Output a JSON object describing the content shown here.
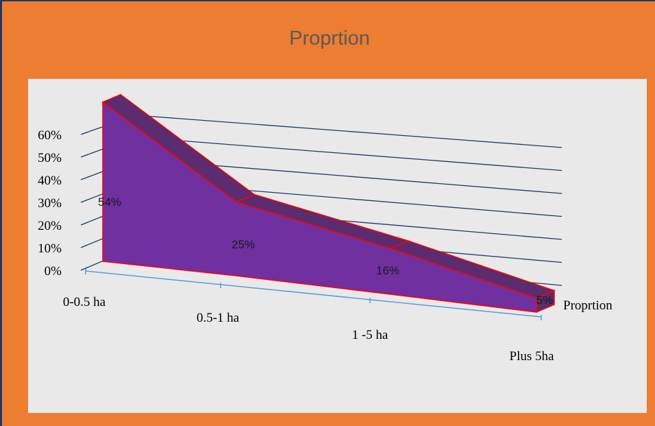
{
  "chart_data": {
    "type": "area",
    "title": "Proprtion",
    "categories": [
      "0-0.5 ha",
      "0.5-1 ha",
      "1 -5 ha",
      "Plus 5ha"
    ],
    "series": [
      {
        "name": "Proprtion",
        "values": [
          0.54,
          0.25,
          0.16,
          0.05
        ],
        "labels": [
          "54%",
          "25%",
          "16%",
          "5%"
        ]
      }
    ],
    "y_ticks": [
      "0%",
      "10%",
      "20%",
      "30%",
      "40%",
      "50%",
      "60%"
    ],
    "ylim": [
      0,
      0.6
    ],
    "three_d": true,
    "grid": true,
    "legend": "none",
    "colors": {
      "background": "#ED7D31",
      "plot_area": "#E9E9E9",
      "front_face": "#7030A0",
      "top_face": "#5B2C6F",
      "edge": "#FF0000",
      "gridline": "#1F3864",
      "x_axis": "#5B9BD5"
    }
  }
}
